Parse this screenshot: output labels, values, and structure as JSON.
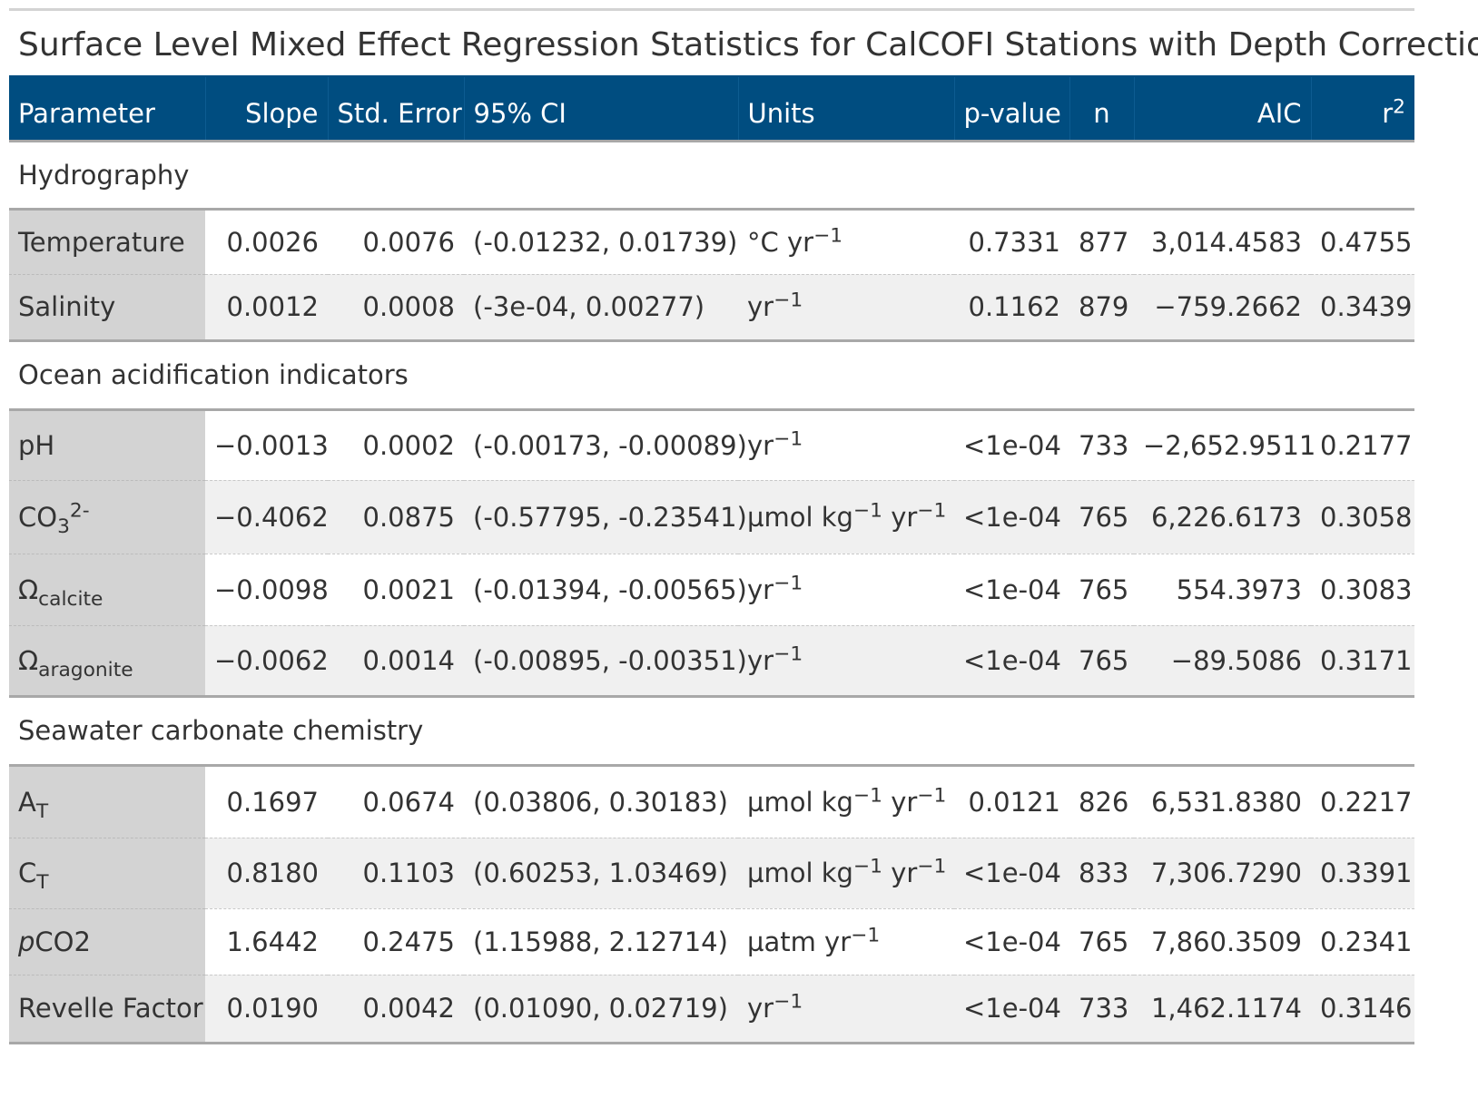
{
  "title": "Surface Level Mixed Effect Regression Statistics for CalCOFI Stations with Depth Correction",
  "header": {
    "parameter": "Parameter",
    "slope": "Slope",
    "std_error": "Std. Error",
    "ci": "95% CI",
    "units": "Units",
    "p_value": "p-value",
    "n": "n",
    "aic": "AIC",
    "r2_base": "r",
    "r2_sup": "2"
  },
  "groups": [
    {
      "label": "Hydrography",
      "rows": [
        {
          "param": "Temperature",
          "slope": "0.0026",
          "se": "0.0076",
          "ci": "(-0.01232, 0.01739)",
          "units_a": "°C yr",
          "units_a_sup": "−1",
          "units_b": "",
          "units_b_sup": "",
          "p": "0.7331",
          "n": "877",
          "aic": "3,014.4583",
          "r2": "0.4755"
        },
        {
          "param": "Salinity",
          "slope": "0.0012",
          "se": "0.0008",
          "ci": "(-3e-04, 0.00277)",
          "units_a": "yr",
          "units_a_sup": "−1",
          "units_b": "",
          "units_b_sup": "",
          "p": "0.1162",
          "n": "879",
          "aic": "−759.2662",
          "r2": "0.3439"
        }
      ]
    },
    {
      "label": "Ocean acidification indicators",
      "rows": [
        {
          "param": "pH",
          "slope": "−0.0013",
          "se": "0.0002",
          "ci": "(-0.00173, -0.00089)",
          "units_a": "yr",
          "units_a_sup": "−1",
          "units_b": "",
          "units_b_sup": "",
          "p": "<1e-04",
          "n": "733",
          "aic": "−2,652.9511",
          "r2": "0.2177"
        },
        {
          "param_base": "CO",
          "param_sub": "3",
          "param_sup": "2-",
          "slope": "−0.4062",
          "se": "0.0875",
          "ci": "(-0.57795, -0.23541)",
          "units_a": "µmol kg",
          "units_a_sup": "−1",
          "units_b": " yr",
          "units_b_sup": "−1",
          "p": "<1e-04",
          "n": "765",
          "aic": "6,226.6173",
          "r2": "0.3058"
        },
        {
          "param_base": "Ω",
          "param_sub": "calcite",
          "slope": "−0.0098",
          "se": "0.0021",
          "ci": "(-0.01394, -0.00565)",
          "units_a": "yr",
          "units_a_sup": "−1",
          "units_b": "",
          "units_b_sup": "",
          "p": "<1e-04",
          "n": "765",
          "aic": "554.3973",
          "r2": "0.3083"
        },
        {
          "param_base": "Ω",
          "param_sub": "aragonite",
          "slope": "−0.0062",
          "se": "0.0014",
          "ci": "(-0.00895, -0.00351)",
          "units_a": "yr",
          "units_a_sup": "−1",
          "units_b": "",
          "units_b_sup": "",
          "p": "<1e-04",
          "n": "765",
          "aic": "−89.5086",
          "r2": "0.3171"
        }
      ]
    },
    {
      "label": "Seawater carbonate chemistry",
      "rows": [
        {
          "param_base": "A",
          "param_sub": "T",
          "slope": "0.1697",
          "se": "0.0674",
          "ci": "(0.03806, 0.30183)",
          "units_a": "µmol kg",
          "units_a_sup": "−1",
          "units_b": " yr",
          "units_b_sup": "−1",
          "p": "0.0121",
          "n": "826",
          "aic": "6,531.8380",
          "r2": "0.2217"
        },
        {
          "param_base": "C",
          "param_sub": "T",
          "slope": "0.8180",
          "se": "0.1103",
          "ci": "(0.60253, 1.03469)",
          "units_a": "µmol kg",
          "units_a_sup": "−1",
          "units_b": " yr",
          "units_b_sup": "−1",
          "p": "<1e-04",
          "n": "833",
          "aic": "7,306.7290",
          "r2": "0.3391"
        },
        {
          "param_it": "p",
          "param_base": "CO2",
          "slope": "1.6442",
          "se": "0.2475",
          "ci": "(1.15988, 2.12714)",
          "units_a": "µatm yr",
          "units_a_sup": "−1",
          "units_b": "",
          "units_b_sup": "",
          "p": "<1e-04",
          "n": "765",
          "aic": "7,860.3509",
          "r2": "0.2341"
        },
        {
          "param": "Revelle Factor",
          "slope": "0.0190",
          "se": "0.0042",
          "ci": "(0.01090, 0.02719)",
          "units_a": "yr",
          "units_a_sup": "−1",
          "units_b": "",
          "units_b_sup": "",
          "p": "<1e-04",
          "n": "733",
          "aic": "1,462.1174",
          "r2": "0.3146"
        }
      ]
    }
  ]
}
